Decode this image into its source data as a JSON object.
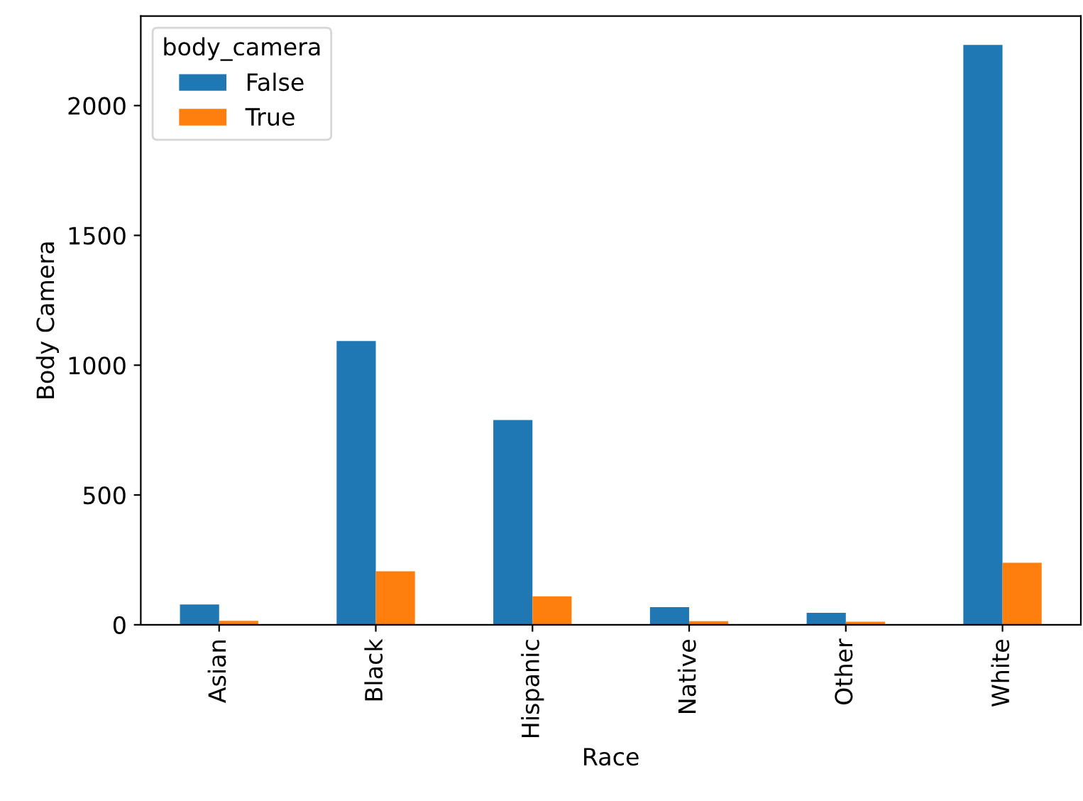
{
  "chart_data": {
    "type": "bar",
    "xlabel": "Race",
    "ylabel": "Body Camera",
    "legend_title": "body_camera",
    "legend": "top left",
    "categories": [
      "Asian",
      "Black",
      "Hispanic",
      "Native",
      "Other",
      "White"
    ],
    "series": [
      {
        "name": "False",
        "color": "#1f77b4",
        "values": [
          78,
          1093,
          789,
          68,
          46,
          2234
        ]
      },
      {
        "name": "True",
        "color": "#ff7f0e",
        "values": [
          15,
          206,
          110,
          14,
          12,
          239
        ]
      }
    ],
    "ylim": [
      0,
      2345
    ],
    "yticks": [
      0,
      500,
      1000,
      1500,
      2000
    ],
    "grid": false
  }
}
